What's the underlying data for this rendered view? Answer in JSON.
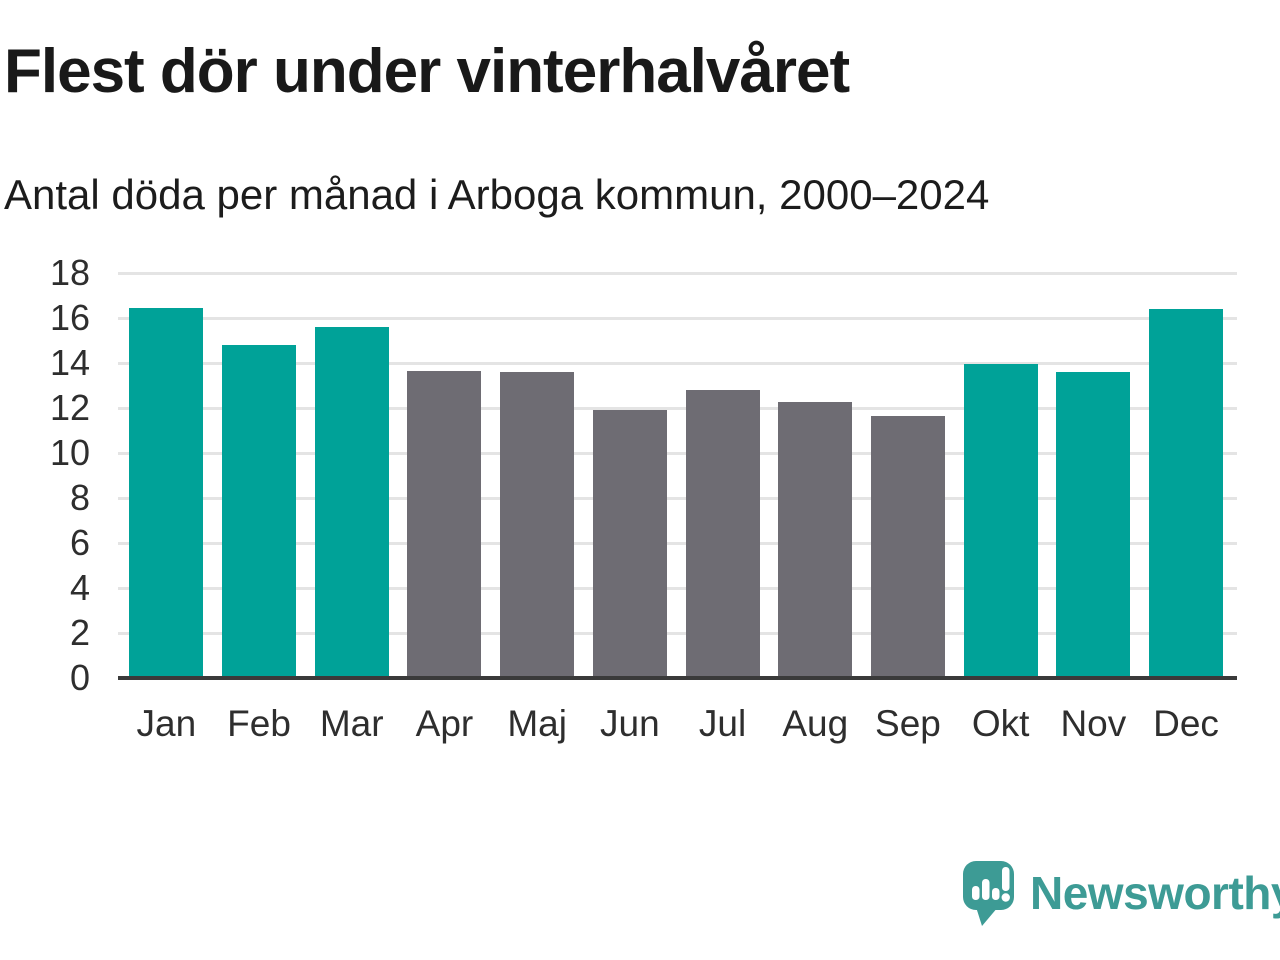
{
  "chart_data": {
    "type": "bar",
    "title": "Flest dör under vinterhalvåret",
    "subtitle": "Antal döda per månad i Arboga kommun, 2000–2024",
    "categories": [
      "Jan",
      "Feb",
      "Mar",
      "Apr",
      "Maj",
      "Jun",
      "Jul",
      "Aug",
      "Sep",
      "Okt",
      "Nov",
      "Dec"
    ],
    "values": [
      16.45,
      14.8,
      15.6,
      13.65,
      13.6,
      11.9,
      12.8,
      12.25,
      11.65,
      13.95,
      13.6,
      16.4
    ],
    "groups": [
      "winter",
      "winter",
      "winter",
      "summer",
      "summer",
      "summer",
      "summer",
      "summer",
      "summer",
      "winter",
      "winter",
      "winter"
    ],
    "palette": {
      "winter": "#00a298",
      "summer": "#6e6c73"
    },
    "xlabel": "",
    "ylabel": "",
    "ylim": [
      0,
      18
    ],
    "yticks": [
      0,
      2,
      4,
      6,
      8,
      10,
      12,
      14,
      16,
      18
    ],
    "grid": true,
    "legend": "none"
  },
  "footer": {
    "brand": "Newsworthy",
    "brand_color": "#3d9b95"
  }
}
